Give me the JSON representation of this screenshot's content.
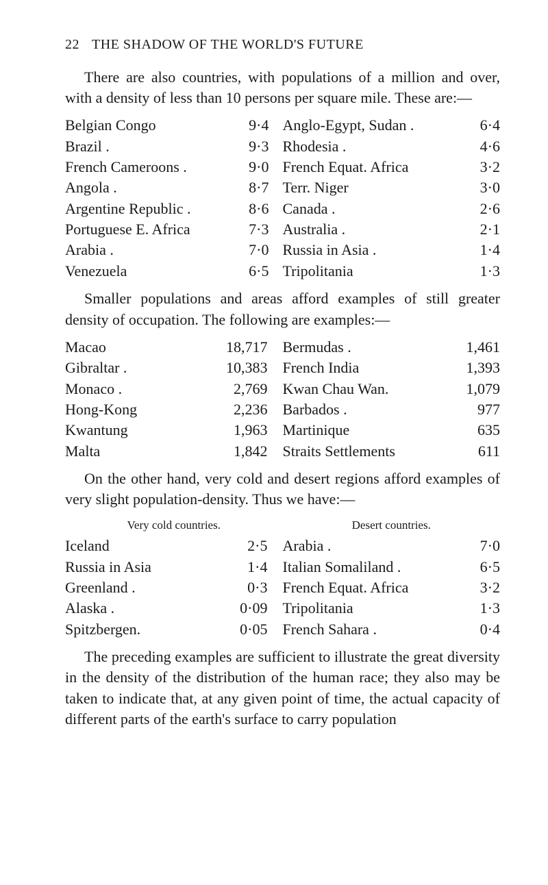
{
  "header": {
    "pageNumber": "22",
    "title": "THE SHADOW OF THE WORLD'S FUTURE"
  },
  "para1": "There are also countries, with populations of a million and over, with a density of less than 10 persons per square mile.  These are:—",
  "table1": {
    "rows": [
      {
        "l": "Belgian Congo",
        "lv": "9·4",
        "r": "Anglo-Egypt, Sudan .",
        "rv": "6·4"
      },
      {
        "l": "Brazil   .",
        "lv": "9·3",
        "r": "Rhodesia .",
        "rv": "4·6"
      },
      {
        "l": "French Cameroons .",
        "lv": "9·0",
        "r": "French Equat. Africa",
        "rv": "3·2"
      },
      {
        "l": "Angola   .",
        "lv": "8·7",
        "r": "Terr. Niger",
        "rv": "3·0"
      },
      {
        "l": "Argentine Republic .",
        "lv": "8·6",
        "r": "Canada   .",
        "rv": "2·6"
      },
      {
        "l": "Portuguese E. Africa",
        "lv": "7·3",
        "r": "Australia .",
        "rv": "2·1"
      },
      {
        "l": "Arabia   .",
        "lv": "7·0",
        "r": "Russia in Asia .",
        "rv": "1·4"
      },
      {
        "l": "Venezuela",
        "lv": "6·5",
        "r": "Tripolitania",
        "rv": "1·3"
      }
    ]
  },
  "para2": "Smaller populations and areas afford examples of still greater density of occupation.  The following are examples:—",
  "table2": {
    "rows": [
      {
        "l": "Macao",
        "lv": "18,717",
        "r": "Bermudas  .",
        "rv": "1,461"
      },
      {
        "l": "Gibraltar  .",
        "lv": "10,383",
        "r": "French India",
        "rv": "1,393"
      },
      {
        "l": "Monaco   .",
        "lv": "2,769",
        "r": "Kwan Chau Wan.",
        "rv": "1,079"
      },
      {
        "l": "Hong-Kong",
        "lv": "2,236",
        "r": "Barbados  .",
        "rv": "977"
      },
      {
        "l": "Kwantung",
        "lv": "1,963",
        "r": "Martinique",
        "rv": "635"
      },
      {
        "l": "Malta",
        "lv": "1,842",
        "r": "Straits Settlements",
        "rv": "611"
      }
    ]
  },
  "para3": "On the other hand, very cold and desert regions afford examples of very slight population-density. Thus we have:—",
  "table3": {
    "headerL": "Very cold countries.",
    "headerR": "Desert countries.",
    "rows": [
      {
        "l": "Iceland",
        "lv": "2·5",
        "r": "Arabia   .",
        "rv": "7·0"
      },
      {
        "l": "Russia in Asia",
        "lv": "1·4",
        "r": "Italian Somaliland  .",
        "rv": "6·5"
      },
      {
        "l": "Greenland  .",
        "lv": "0·3",
        "r": "French Equat. Africa",
        "rv": "3·2"
      },
      {
        "l": "Alaska .",
        "lv": "0·09",
        "r": "Tripolitania",
        "rv": "1·3"
      },
      {
        "l": "Spitzbergen.",
        "lv": "0·05",
        "r": "French Sahara .",
        "rv": "0·4"
      }
    ]
  },
  "para4": "The preceding examples are sufficient to illustrate the great diversity in the density of the distribution of the human race;  they also may be taken to indicate that, at any given point of time, the actual capacity of different parts of the earth's surface to carry population"
}
